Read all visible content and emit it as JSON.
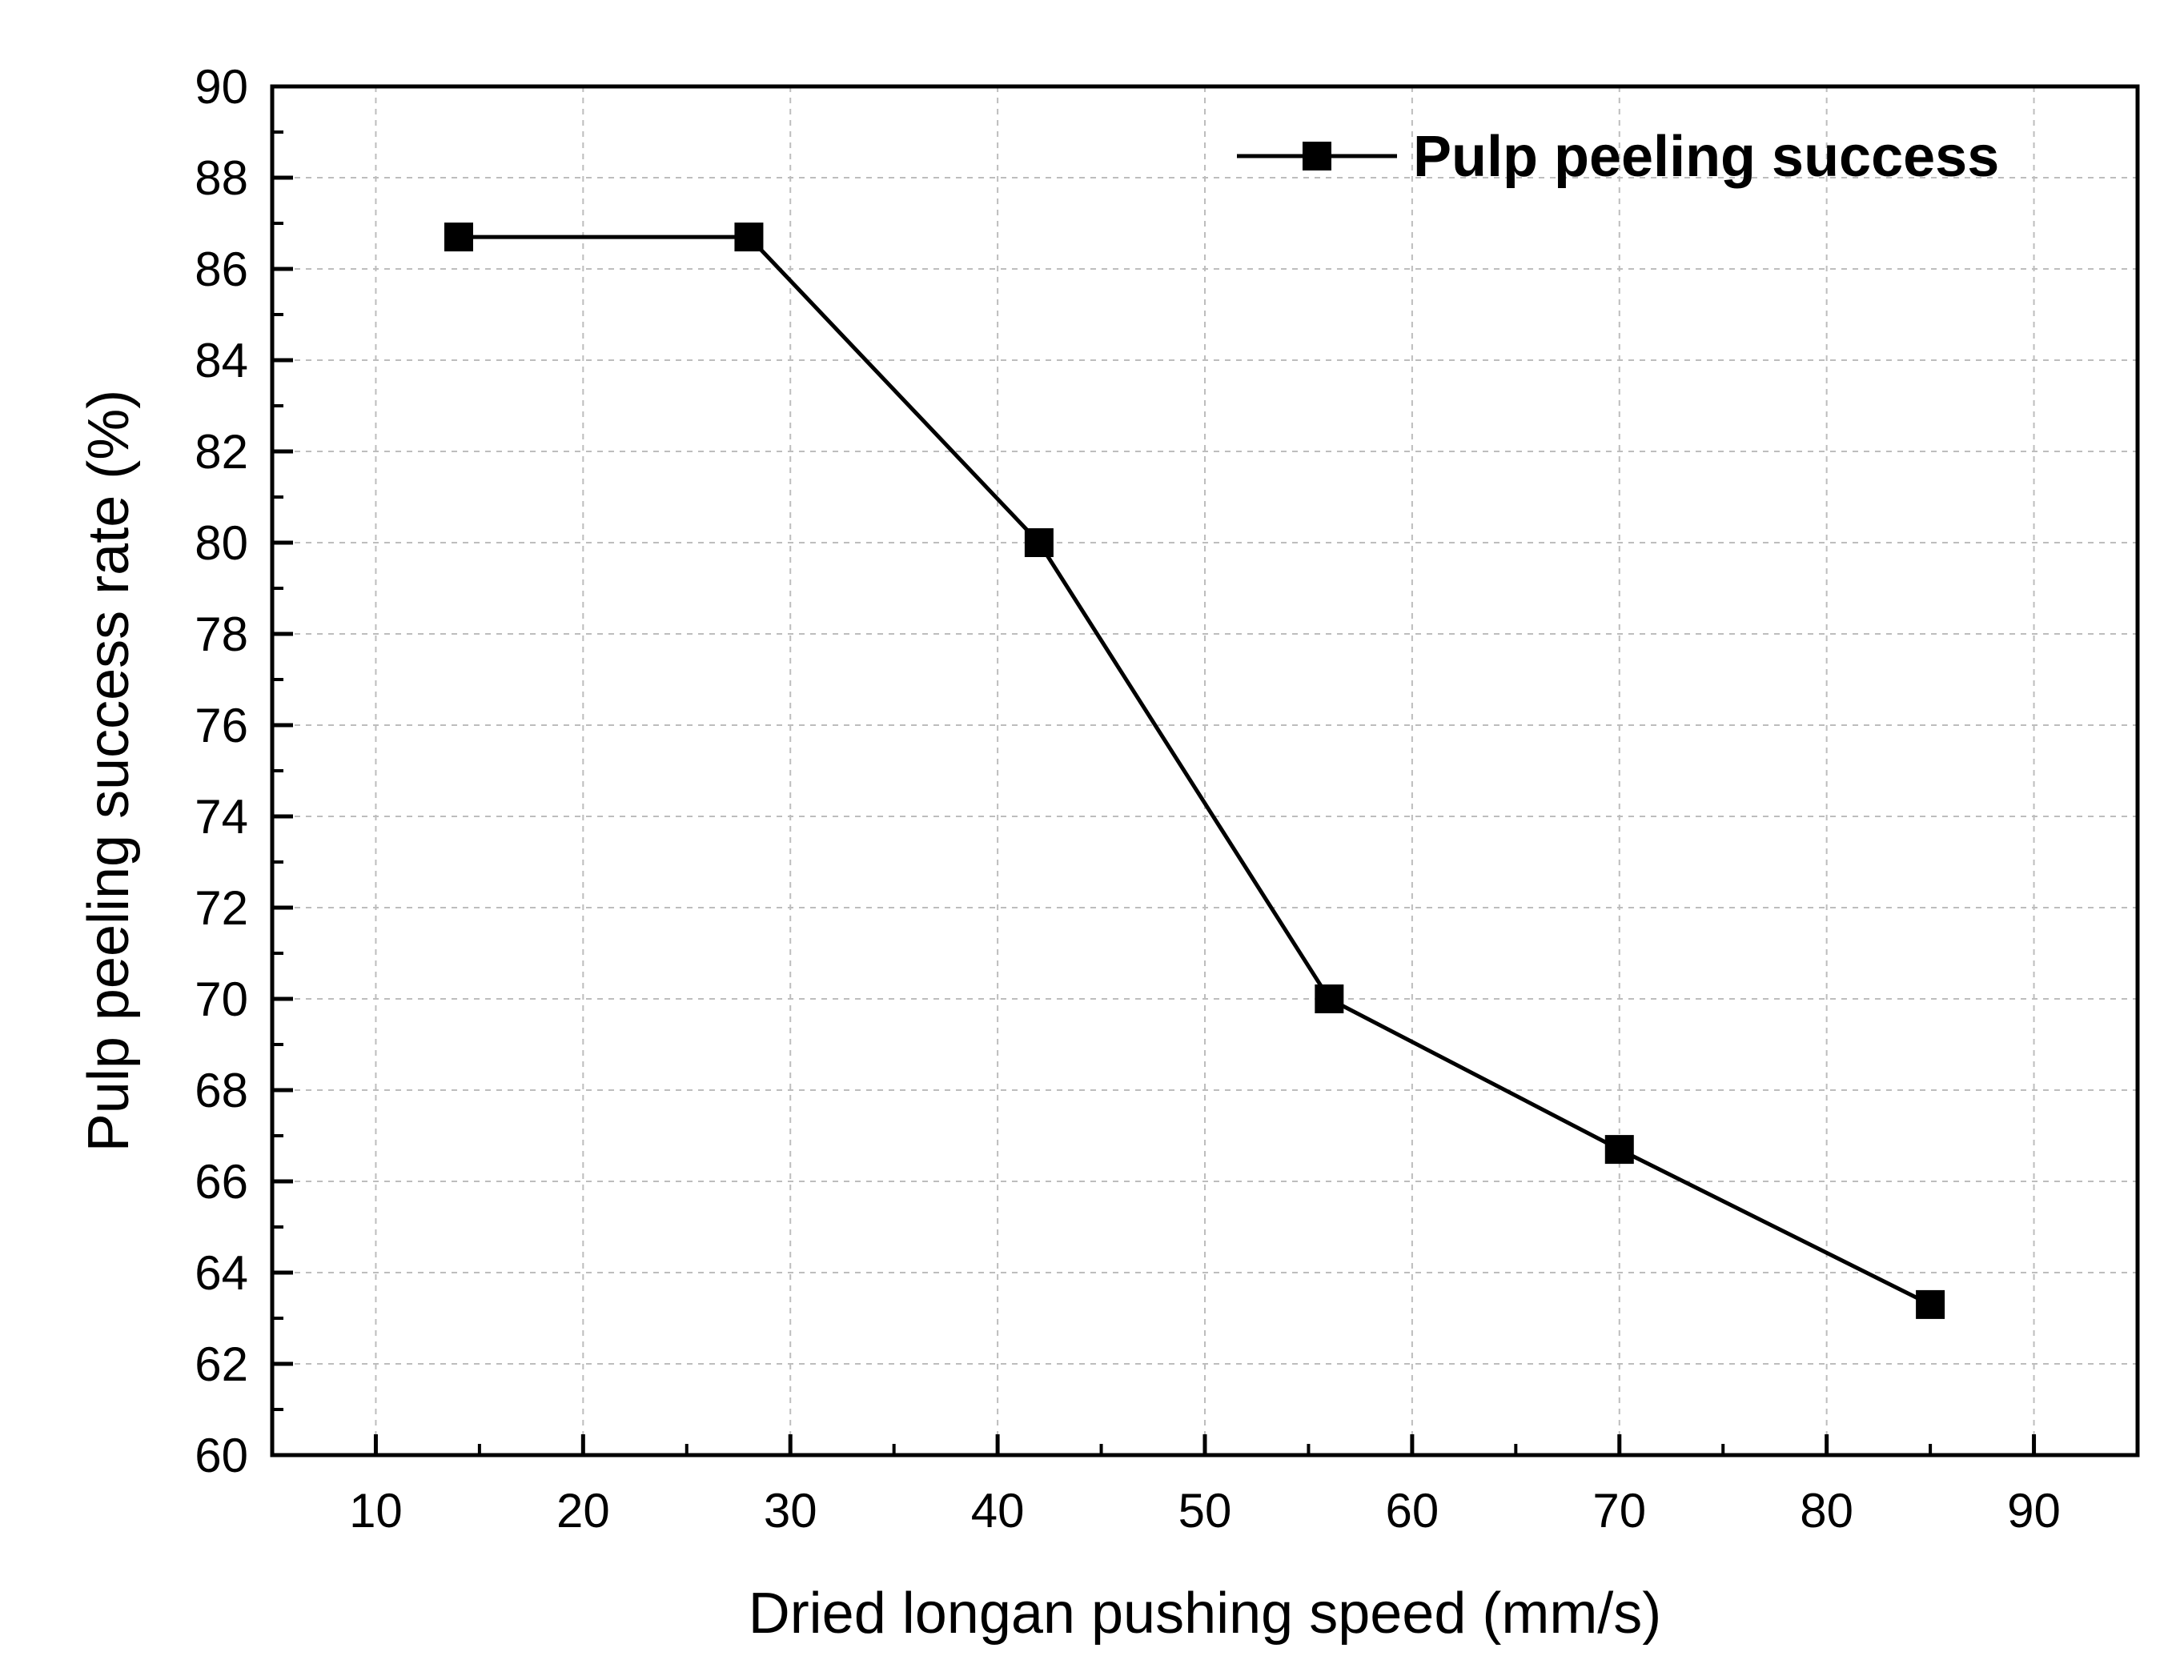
{
  "chart_data": {
    "type": "line",
    "xlabel": "Dried longan pushing speed (mm/s)",
    "ylabel": "Pulp peeling success rate (%)",
    "xlim": [
      5,
      95
    ],
    "ylim": [
      60,
      90
    ],
    "x_ticks": [
      10,
      20,
      30,
      40,
      50,
      60,
      70,
      80,
      90
    ],
    "y_ticks": [
      60,
      62,
      64,
      66,
      68,
      70,
      72,
      74,
      76,
      78,
      80,
      82,
      84,
      86,
      88,
      90
    ],
    "grid": true,
    "legend_position": "top-right",
    "series": [
      {
        "name": "Pulp peeling success",
        "marker": "square",
        "color": "#000000",
        "x": [
          14,
          28,
          42,
          56,
          70,
          85
        ],
        "y": [
          86.7,
          86.7,
          80.0,
          70.0,
          66.7,
          63.3
        ]
      }
    ]
  }
}
